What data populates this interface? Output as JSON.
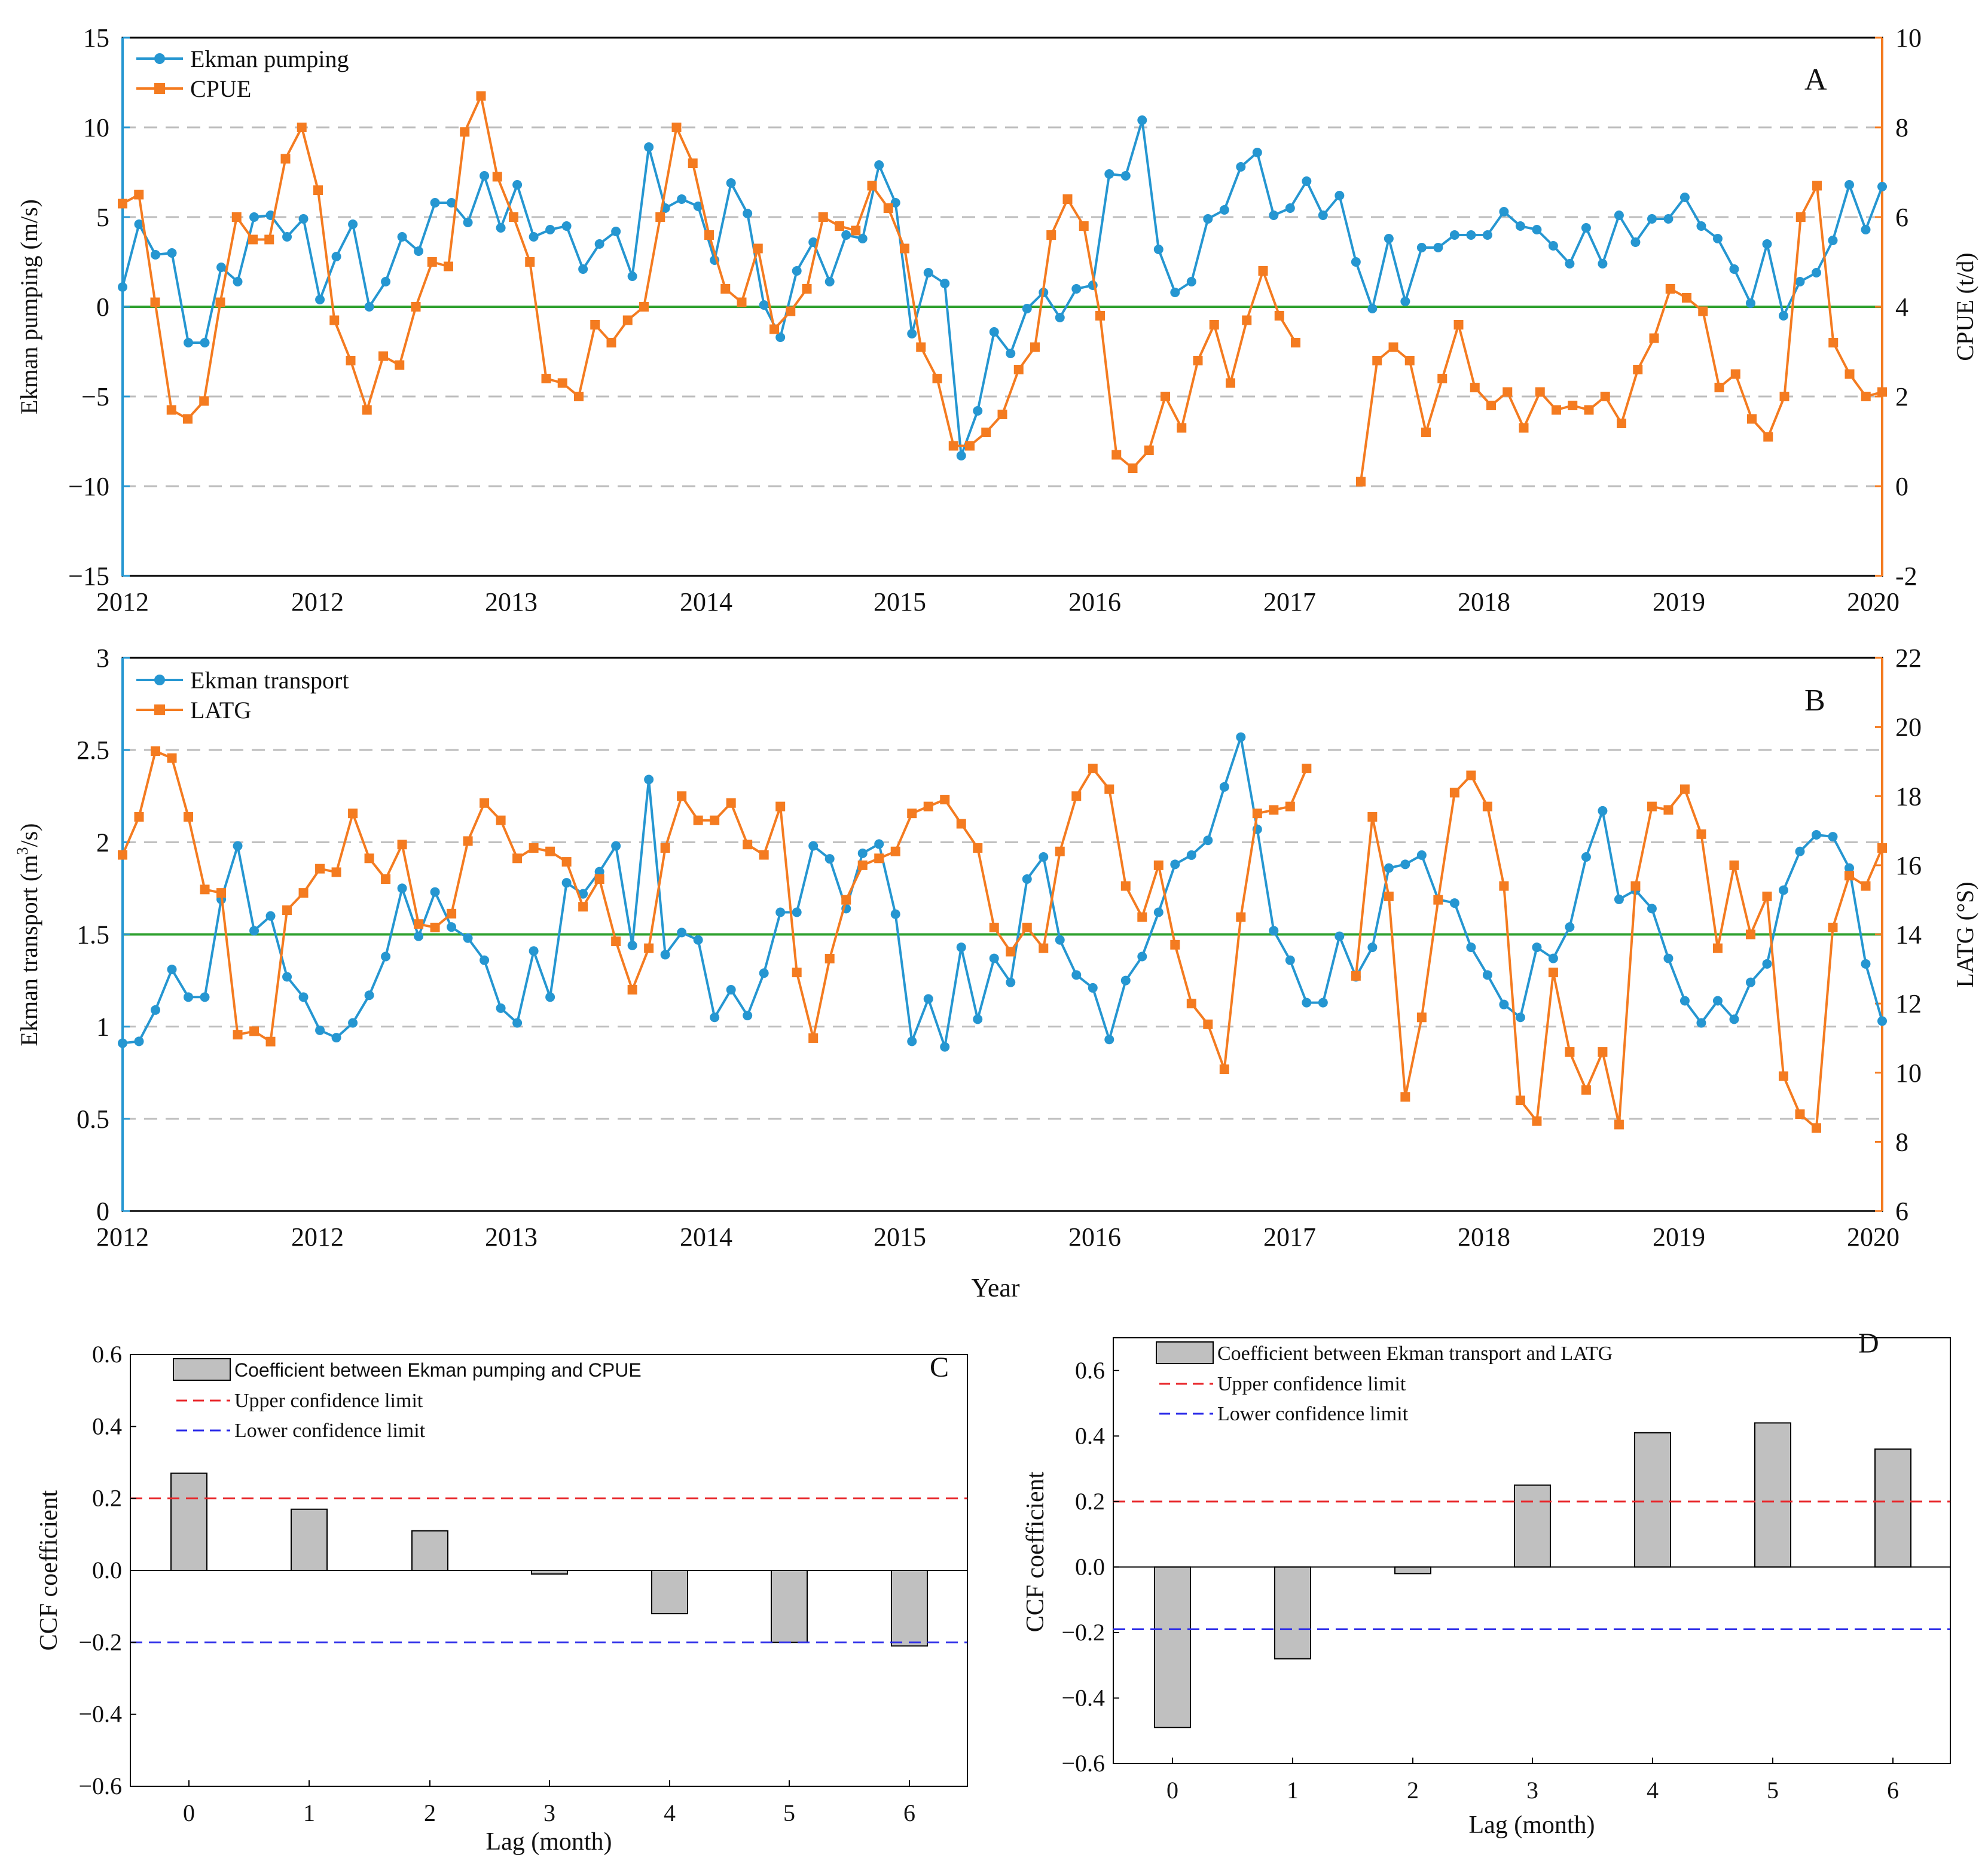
{
  "colors": {
    "blue": "#2596d1",
    "orange": "#f47b20",
    "green": "#2ea02e",
    "grid": "#bdbdbd",
    "bar_fill": "#c0c0c0",
    "upper_limit": "#e8262a",
    "lower_limit": "#2a2ae8"
  },
  "chart_data": [
    {
      "id": "A",
      "type": "line",
      "panel_label": "A",
      "x_tick_labels": [
        "2012",
        "2012",
        "2013",
        "2014",
        "2015",
        "2016",
        "2017",
        "2018",
        "2019",
        "2020"
      ],
      "xlabel": "",
      "y_left": {
        "label": "Ekman pumping (m/s)",
        "range": [
          -15,
          15
        ],
        "ticks": [
          -15,
          -10,
          -5,
          0,
          5,
          10,
          15
        ],
        "tick_labels": [
          "−15",
          "−10",
          "−5",
          "0",
          "5",
          "10",
          "15"
        ]
      },
      "y_right": {
        "label": "CPUE (t/d)",
        "range": [
          -2,
          10
        ],
        "ticks": [
          -2,
          0,
          2,
          4,
          6,
          8,
          10
        ],
        "tick_labels": [
          "-2",
          "0",
          "2",
          "4",
          "6",
          "8",
          "10"
        ]
      },
      "reference_line": 0,
      "dashed_grid": [
        -10,
        -5,
        5,
        10
      ],
      "series": [
        {
          "name": "Ekman pumping",
          "axis": "left",
          "color": "blue",
          "marker": "circle",
          "values": [
            1.1,
            4.6,
            2.9,
            3.0,
            -2.0,
            -2.0,
            2.2,
            1.4,
            5.0,
            5.1,
            3.9,
            4.9,
            0.4,
            2.8,
            4.6,
            0.0,
            1.4,
            3.9,
            3.1,
            5.8,
            5.8,
            4.7,
            7.3,
            4.4,
            6.8,
            3.9,
            4.3,
            4.5,
            2.1,
            3.5,
            4.2,
            1.7,
            8.9,
            5.5,
            6.0,
            5.6,
            2.6,
            6.9,
            5.2,
            0.1,
            -1.7,
            2.0,
            3.6,
            1.4,
            4.0,
            3.8,
            7.9,
            5.8,
            -1.5,
            1.9,
            1.3,
            -8.3,
            -5.8,
            -1.4,
            -2.6,
            -0.1,
            0.8,
            -0.6,
            1.0,
            1.2,
            7.4,
            7.3,
            10.4,
            3.2,
            0.8,
            1.4,
            4.9,
            5.4,
            7.8,
            8.6,
            5.1,
            5.5,
            7.0,
            5.1,
            6.2,
            2.5,
            -0.1,
            3.8,
            0.3,
            3.3,
            3.3,
            4.0,
            4.0,
            4.0,
            5.3,
            4.5,
            4.3,
            3.4,
            2.4,
            4.4,
            2.4,
            5.1,
            3.6,
            4.9,
            4.9,
            6.1,
            4.5,
            3.8,
            2.1,
            0.2,
            3.5,
            -0.5,
            1.4,
            1.9,
            3.7,
            6.8,
            4.3,
            6.7
          ]
        },
        {
          "name": "CPUE",
          "axis": "right",
          "color": "orange",
          "marker": "square",
          "values": [
            6.3,
            6.5,
            4.1,
            1.7,
            1.5,
            1.9,
            4.1,
            6.0,
            5.5,
            5.5,
            7.3,
            8.0,
            6.6,
            3.7,
            2.8,
            1.7,
            2.9,
            2.7,
            4.0,
            5.0,
            4.9,
            7.9,
            8.7,
            6.9,
            6.0,
            5.0,
            2.4,
            2.3,
            2.0,
            3.6,
            3.2,
            3.7,
            4.0,
            6.0,
            8.0,
            7.2,
            5.6,
            4.4,
            4.1,
            5.3,
            3.5,
            3.9,
            4.4,
            6.0,
            5.8,
            5.7,
            6.7,
            6.2,
            5.3,
            3.1,
            2.4,
            0.9,
            0.9,
            1.2,
            1.6,
            2.6,
            3.1,
            5.6,
            6.4,
            5.8,
            3.8,
            0.7,
            0.4,
            0.8,
            2.0,
            1.3,
            2.8,
            3.6,
            2.3,
            3.7,
            4.8,
            3.8,
            3.2,
            null,
            null,
            null,
            0.1,
            2.8,
            3.1,
            2.8,
            1.2,
            2.4,
            3.6,
            2.2,
            1.8,
            2.1,
            1.3,
            2.1,
            1.7,
            1.8,
            1.7,
            2.0,
            1.4,
            2.6,
            3.3,
            4.4,
            4.2,
            3.9,
            2.2,
            2.5,
            1.5,
            1.1,
            2.0,
            6.0,
            6.7,
            3.2,
            2.5,
            2.0,
            2.1
          ]
        }
      ]
    },
    {
      "id": "B",
      "type": "line",
      "panel_label": "B",
      "x_tick_labels": [
        "2012",
        "2012",
        "2013",
        "2014",
        "2015",
        "2016",
        "2017",
        "2018",
        "2019",
        "2020"
      ],
      "xlabel": "Year",
      "y_left": {
        "label_prefix": "Ekman transport  (m",
        "label_sup": "3",
        "label_suffix": "/s)",
        "range": [
          0,
          3
        ],
        "ticks": [
          0,
          0.5,
          1,
          1.5,
          2,
          2.5,
          3
        ],
        "tick_labels": [
          "0",
          "0.5",
          "1",
          "1.5",
          "2",
          "2.5",
          "3"
        ]
      },
      "y_right": {
        "label": "LATG (°S)",
        "range": [
          6,
          22
        ],
        "ticks": [
          6,
          8,
          10,
          12,
          14,
          16,
          18,
          20,
          22
        ],
        "tick_labels": [
          "6",
          "8",
          "10",
          "12",
          "14",
          "16",
          "18",
          "20",
          "22"
        ]
      },
      "reference_line": 1.5,
      "dashed_grid": [
        0.5,
        1,
        2,
        2.5
      ],
      "series": [
        {
          "name": "Ekman transport",
          "axis": "left",
          "color": "blue",
          "marker": "circle",
          "values": [
            0.91,
            0.92,
            1.09,
            1.31,
            1.16,
            1.16,
            1.69,
            1.98,
            1.52,
            1.6,
            1.27,
            1.16,
            0.98,
            0.94,
            1.02,
            1.17,
            1.38,
            1.75,
            1.49,
            1.73,
            1.54,
            1.48,
            1.36,
            1.1,
            1.02,
            1.41,
            1.16,
            1.78,
            1.72,
            1.84,
            1.98,
            1.44,
            2.34,
            1.39,
            1.51,
            1.47,
            1.05,
            1.2,
            1.06,
            1.29,
            1.62,
            1.62,
            1.98,
            1.91,
            1.64,
            1.94,
            1.99,
            1.61,
            0.92,
            1.15,
            0.89,
            1.43,
            1.04,
            1.37,
            1.24,
            1.8,
            1.92,
            1.47,
            1.28,
            1.21,
            0.93,
            1.25,
            1.38,
            1.62,
            1.88,
            1.93,
            2.01,
            2.3,
            2.57,
            2.07,
            1.52,
            1.36,
            1.13,
            1.13,
            1.49,
            1.27,
            1.43,
            1.86,
            1.88,
            1.93,
            1.69,
            1.67,
            1.43,
            1.28,
            1.12,
            1.05,
            1.43,
            1.37,
            1.54,
            1.92,
            2.17,
            1.69,
            1.74,
            1.64,
            1.37,
            1.14,
            1.02,
            1.14,
            1.04,
            1.24,
            1.34,
            1.74,
            1.95,
            2.04,
            2.03,
            1.86,
            1.34,
            1.03
          ]
        },
        {
          "name": "LATG",
          "axis": "right",
          "color": "orange",
          "marker": "square",
          "values": [
            16.3,
            17.4,
            19.3,
            19.1,
            17.4,
            15.3,
            15.2,
            11.1,
            11.2,
            10.9,
            14.7,
            15.2,
            15.9,
            15.8,
            17.5,
            16.2,
            15.6,
            16.6,
            14.3,
            14.2,
            14.6,
            16.7,
            17.8,
            17.3,
            16.2,
            16.5,
            16.4,
            16.1,
            14.8,
            15.6,
            13.8,
            12.4,
            13.6,
            16.5,
            18.0,
            17.3,
            17.3,
            17.8,
            16.6,
            16.3,
            17.7,
            12.9,
            11.0,
            13.3,
            15.0,
            16.0,
            16.2,
            16.4,
            17.5,
            17.7,
            17.9,
            17.2,
            16.5,
            14.2,
            13.5,
            14.2,
            13.6,
            16.4,
            18.0,
            18.8,
            18.2,
            15.4,
            14.5,
            16.0,
            13.7,
            12.0,
            11.4,
            10.1,
            14.5,
            17.5,
            17.6,
            17.7,
            18.8,
            null,
            null,
            12.8,
            17.4,
            15.1,
            9.3,
            11.6,
            15.0,
            18.1,
            18.6,
            17.7,
            15.4,
            9.2,
            8.6,
            12.9,
            10.6,
            9.5,
            10.6,
            8.5,
            15.4,
            17.7,
            17.6,
            18.2,
            16.9,
            13.6,
            16.0,
            14.0,
            15.1,
            9.9,
            8.8,
            8.4,
            14.2,
            15.7,
            15.4,
            16.5
          ]
        }
      ]
    },
    {
      "id": "C",
      "type": "bar",
      "panel_label": "C",
      "categories": [
        "0",
        "1",
        "2",
        "3",
        "4",
        "5",
        "6"
      ],
      "values": [
        0.27,
        0.17,
        0.11,
        -0.01,
        -0.12,
        -0.2,
        -0.21
      ],
      "xlabel": "Lag (month)",
      "ylabel": "CCF coefficient",
      "ylim": [
        -0.6,
        0.6
      ],
      "y_ticks": [
        -0.6,
        -0.4,
        -0.2,
        0,
        0.2,
        0.4,
        0.6
      ],
      "y_tick_labels": [
        "−0.6",
        "−0.4",
        "−0.2",
        "0.0",
        "0.2",
        "0.4",
        "0.6"
      ],
      "upper_limit": 0.2,
      "lower_limit": -0.2,
      "legend": {
        "position": "top-left",
        "bar_label": "Coefficient between Ekman pumping and CPUE",
        "upper_label": "Upper confidence limit",
        "lower_label": "Lower confidence limit"
      }
    },
    {
      "id": "D",
      "type": "bar",
      "panel_label": "D",
      "categories": [
        "0",
        "1",
        "2",
        "3",
        "4",
        "5",
        "6"
      ],
      "values": [
        -0.49,
        -0.28,
        -0.02,
        0.25,
        0.41,
        0.44,
        0.36
      ],
      "xlabel": "Lag (month)",
      "ylabel": "CCF coefficient",
      "ylim": [
        -0.6,
        0.7
      ],
      "y_ticks": [
        -0.6,
        -0.4,
        -0.2,
        0,
        0.2,
        0.4,
        0.6
      ],
      "y_tick_labels": [
        "−0.6",
        "−0.4",
        "−0.2",
        "0.0",
        "0.2",
        "0.4",
        "0.6"
      ],
      "upper_limit": 0.2,
      "lower_limit": -0.19,
      "legend": {
        "position": "top-left",
        "bar_label": "Coefficient between Ekman transport and LATG",
        "upper_label": "Upper confidence limit",
        "lower_label": "Lower confidence limit"
      }
    }
  ]
}
